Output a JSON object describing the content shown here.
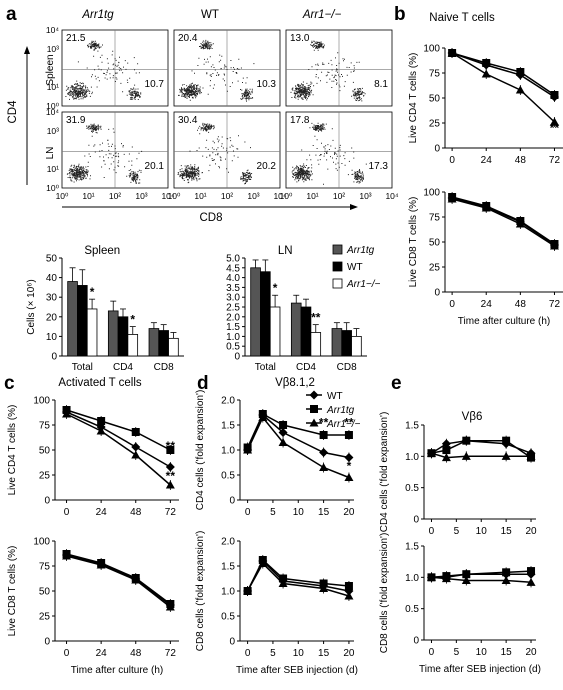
{
  "panel_labels": {
    "a": "a",
    "b": "b",
    "c": "c",
    "d": "d",
    "e": "e"
  },
  "flow": {
    "columns": [
      "Arr1tg",
      "WT",
      "Arr1−/−"
    ],
    "rows": [
      "Spleen",
      "LN"
    ],
    "y_axis_label": "CD4",
    "x_axis_label": "CD8",
    "y_ticks": [
      "10⁴",
      "10³",
      "10²",
      "10¹",
      "10⁰"
    ],
    "x_ticks": [
      "10⁰",
      "10¹",
      "10²",
      "10³",
      "10⁴"
    ],
    "quadrants": [
      [
        {
          "top": "21.5",
          "bottom": "10.7"
        },
        {
          "top": "20.4",
          "bottom": "10.3"
        },
        {
          "top": "13.0",
          "bottom": "8.1"
        }
      ],
      [
        {
          "top": "31.9",
          "bottom": "20.1"
        },
        {
          "top": "30.4",
          "bottom": "20.2"
        },
        {
          "top": "17.8",
          "bottom": "17.3"
        }
      ]
    ]
  },
  "panel_b": {
    "title": "Naive T cells"
  },
  "panel_c": {
    "title": "Activated T cells"
  },
  "panel_d": {
    "title": "Vβ8.1,2"
  },
  "panel_e": {
    "title": "Vβ6"
  },
  "colors": {
    "wt": "#000000",
    "tg": "#555555",
    "ko": "#ffffff",
    "edge": "#000000"
  },
  "chart_data": [
    {
      "id": "a-bars-spleen",
      "type": "bar",
      "title": "Spleen",
      "ylabel": "Cells (× 10⁶)",
      "categories": [
        "Total",
        "CD4",
        "CD8"
      ],
      "ylim": [
        0,
        50
      ],
      "yticks": [
        "0",
        "10",
        "20",
        "30",
        "40",
        "50"
      ],
      "series": [
        {
          "name": "Arr1tg",
          "values": [
            38,
            23,
            14
          ],
          "err": [
            7,
            5,
            3
          ]
        },
        {
          "name": "WT",
          "values": [
            36,
            20,
            13
          ],
          "err": [
            8,
            4,
            3
          ]
        },
        {
          "name": "Arr1−/−",
          "values": [
            24,
            11,
            9
          ],
          "err": [
            5,
            4,
            3
          ]
        }
      ],
      "annotations": [
        {
          "category": "Total",
          "text": "*"
        },
        {
          "category": "CD4",
          "text": "*"
        }
      ]
    },
    {
      "id": "a-bars-ln",
      "type": "bar",
      "title": "LN",
      "categories": [
        "Total",
        "CD4",
        "CD8"
      ],
      "ylim": [
        0,
        5
      ],
      "yticks": [
        "0",
        "0.5",
        "1.0",
        "1.5",
        "2.0",
        "2.5",
        "3.0",
        "3.5",
        "4.0",
        "4.5",
        "5.0"
      ],
      "series": [
        {
          "name": "Arr1tg",
          "values": [
            4.5,
            2.7,
            1.4
          ],
          "err": [
            0.4,
            0.4,
            0.3
          ]
        },
        {
          "name": "WT",
          "values": [
            4.3,
            2.5,
            1.3
          ],
          "err": [
            0.6,
            0.4,
            0.4
          ]
        },
        {
          "name": "Arr1−/−",
          "values": [
            2.5,
            1.2,
            1.0
          ],
          "err": [
            0.6,
            0.4,
            0.4
          ]
        }
      ],
      "legend": [
        "Arr1tg",
        "WT",
        "Arr1−/−"
      ],
      "annotations": [
        {
          "category": "Total",
          "text": "*"
        },
        {
          "category": "CD4",
          "text": "**"
        }
      ]
    },
    {
      "id": "b-top",
      "type": "line",
      "ylabel": "Live CD4 T cells (%)",
      "x": [
        0,
        24,
        48,
        72
      ],
      "ylim": [
        0,
        100
      ],
      "yticks": [
        "0",
        "25",
        "50",
        "75",
        "100"
      ],
      "series": [
        {
          "name": "WT",
          "values": [
            95,
            83,
            73,
            51
          ]
        },
        {
          "name": "Arr1tg",
          "values": [
            95,
            85,
            76,
            53
          ]
        },
        {
          "name": "Arr1−/−",
          "values": [
            95,
            74,
            58,
            26
          ]
        }
      ],
      "annotations": [
        {
          "x": 72,
          "text": "**"
        }
      ]
    },
    {
      "id": "b-bottom",
      "type": "line",
      "ylabel": "Live CD8 T cells (%)",
      "xlabel": "Time after culture (h)",
      "x": [
        0,
        24,
        48,
        72
      ],
      "ylim": [
        0,
        100
      ],
      "yticks": [
        "0",
        "25",
        "50",
        "75",
        "100"
      ],
      "series": [
        {
          "name": "WT",
          "values": [
            94,
            85,
            70,
            47
          ]
        },
        {
          "name": "Arr1tg",
          "values": [
            95,
            86,
            71,
            48
          ]
        },
        {
          "name": "Arr1−/−",
          "values": [
            93,
            84,
            68,
            46
          ]
        }
      ]
    },
    {
      "id": "c-top",
      "type": "line",
      "ylabel": "Live CD4 T cells (%)",
      "x": [
        0,
        24,
        48,
        72
      ],
      "ylim": [
        0,
        100
      ],
      "yticks": [
        "0",
        "25",
        "50",
        "75",
        "100"
      ],
      "series": [
        {
          "name": "WT",
          "values": [
            88,
            73,
            53,
            33
          ]
        },
        {
          "name": "Arr1tg",
          "values": [
            90,
            79,
            68,
            50
          ]
        },
        {
          "name": "Arr1−/−",
          "values": [
            86,
            69,
            45,
            15
          ]
        }
      ],
      "annotations": [
        {
          "x": 72,
          "text": "**"
        },
        {
          "x": 72,
          "text": "**"
        }
      ]
    },
    {
      "id": "c-bottom",
      "type": "line",
      "ylabel": "Live CD8 T cells (%)",
      "xlabel": "Time after culture (h)",
      "x": [
        0,
        24,
        48,
        72
      ],
      "ylim": [
        0,
        100
      ],
      "yticks": [
        "0",
        "25",
        "50",
        "75",
        "100"
      ],
      "series": [
        {
          "name": "WT",
          "values": [
            86,
            77,
            62,
            36
          ]
        },
        {
          "name": "Arr1tg",
          "values": [
            87,
            78,
            63,
            37
          ]
        },
        {
          "name": "Arr1−/−",
          "values": [
            85,
            76,
            61,
            34
          ]
        }
      ]
    },
    {
      "id": "d-top",
      "type": "line",
      "ylabel": "CD4 cells ('fold expansion')",
      "x": [
        0,
        3,
        7,
        15,
        20
      ],
      "ylim": [
        0,
        2.0
      ],
      "yticks": [
        "0",
        "0.5",
        "1.0",
        "1.5",
        "2.0"
      ],
      "legend": [
        "WT",
        "Arr1tg",
        "Arr1−/−"
      ],
      "series": [
        {
          "name": "WT",
          "values": [
            1.0,
            1.7,
            1.35,
            0.95,
            0.85
          ]
        },
        {
          "name": "Arr1tg",
          "values": [
            1.05,
            1.72,
            1.5,
            1.3,
            1.3
          ]
        },
        {
          "name": "Arr1−/−",
          "values": [
            1.0,
            1.65,
            1.15,
            0.65,
            0.45
          ]
        }
      ],
      "annotations": [
        {
          "x": 15,
          "text": "**"
        },
        {
          "x": 20,
          "text": "**"
        },
        {
          "x": 20,
          "text": "*"
        }
      ]
    },
    {
      "id": "d-bottom",
      "type": "line",
      "ylabel": "CD8 cells ('fold expansion')",
      "xlabel": "Time after SEB injection (d)",
      "x": [
        0,
        3,
        7,
        15,
        20
      ],
      "ylim": [
        0,
        2.0
      ],
      "yticks": [
        "0",
        "0.5",
        "1.0",
        "1.5",
        "2.0"
      ],
      "series": [
        {
          "name": "WT",
          "values": [
            1.0,
            1.6,
            1.2,
            1.1,
            1.0
          ]
        },
        {
          "name": "Arr1tg",
          "values": [
            1.0,
            1.62,
            1.25,
            1.15,
            1.1
          ]
        },
        {
          "name": "Arr1−/−",
          "values": [
            1.0,
            1.55,
            1.15,
            1.05,
            0.9
          ]
        }
      ]
    },
    {
      "id": "e-top",
      "type": "line",
      "ylabel": "CD4 cells ('fold expansion')",
      "x": [
        0,
        3,
        7,
        15,
        20
      ],
      "ylim": [
        0,
        1.5
      ],
      "yticks": [
        "0",
        "0.5",
        "1.0",
        "1.5"
      ],
      "series": [
        {
          "name": "WT",
          "values": [
            1.05,
            1.2,
            1.25,
            1.2,
            1.05
          ]
        },
        {
          "name": "Arr1tg",
          "values": [
            1.05,
            1.1,
            1.25,
            1.25,
            0.98
          ]
        },
        {
          "name": "Arr1−/−",
          "values": [
            1.05,
            0.98,
            1.0,
            1.0,
            1.0
          ]
        }
      ]
    },
    {
      "id": "e-bottom",
      "type": "line",
      "ylabel": "CD8 cells ('fold expansion')",
      "xlabel": "Time after SEB injection (d)",
      "x": [
        0,
        3,
        7,
        15,
        20
      ],
      "ylim": [
        0,
        1.5
      ],
      "yticks": [
        "0",
        "0.5",
        "1.0",
        "1.5"
      ],
      "series": [
        {
          "name": "WT",
          "values": [
            1.0,
            1.0,
            1.05,
            1.05,
            1.05
          ]
        },
        {
          "name": "Arr1tg",
          "values": [
            1.0,
            1.02,
            1.05,
            1.08,
            1.1
          ]
        },
        {
          "name": "Arr1−/−",
          "values": [
            1.0,
            0.98,
            0.95,
            0.95,
            0.92
          ]
        }
      ]
    }
  ]
}
